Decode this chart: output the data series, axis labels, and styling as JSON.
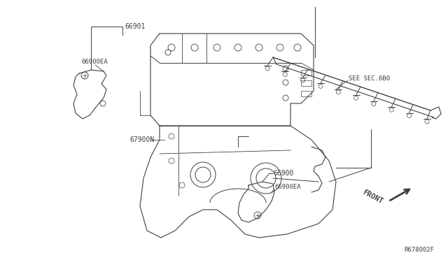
{
  "bg_color": "#ffffff",
  "line_color": "#404040",
  "fig_code": "R678002F",
  "labels": {
    "part1": "66901",
    "part1b": "66900EA",
    "part2": "67900N",
    "part3": "66900",
    "part3b": "66900EA",
    "rail": "SEE SEC.6B0",
    "front": "FRONT"
  }
}
